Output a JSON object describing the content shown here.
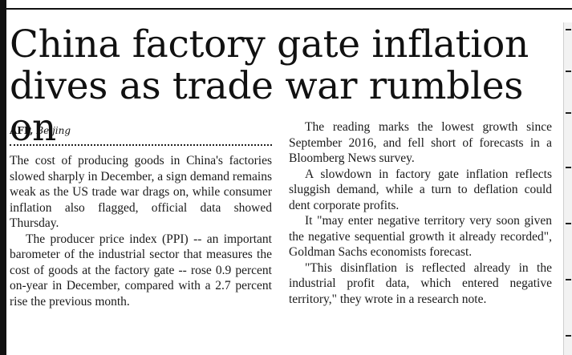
{
  "article": {
    "headline_line1": "China factory gate inflation",
    "headline_line2": "dives as trade war rumbles on",
    "byline": {
      "agency": "AFP,",
      "city": "Beijing"
    },
    "left_column": [
      "The cost of producing goods in China's factories slowed sharply in December, a sign demand remains weak as the US trade war drags on, while consumer inflation also flagged, official data showed Thursday.",
      "The producer price index (PPI) -- an important barometer of the industrial sector that measures the cost of goods at the factory gate -- rose 0.9 percent on-year in December, compared with a 2.7 percent rise the previous month."
    ],
    "right_column": [
      "The reading marks the lowest growth since September 2016, and fell short of forecasts in a Bloomberg News survey.",
      "A slowdown in factory gate inflation reflects sluggish demand, while a turn to deflation could dent corporate profits.",
      "It \"may enter negative territory very soon given the negative sequential growth it already recorded\", Goldman Sachs economists forecast.",
      "\"This disinflation is reflected already in the industrial profit data, which entered negative territory,\" they wrote in a research note."
    ]
  }
}
